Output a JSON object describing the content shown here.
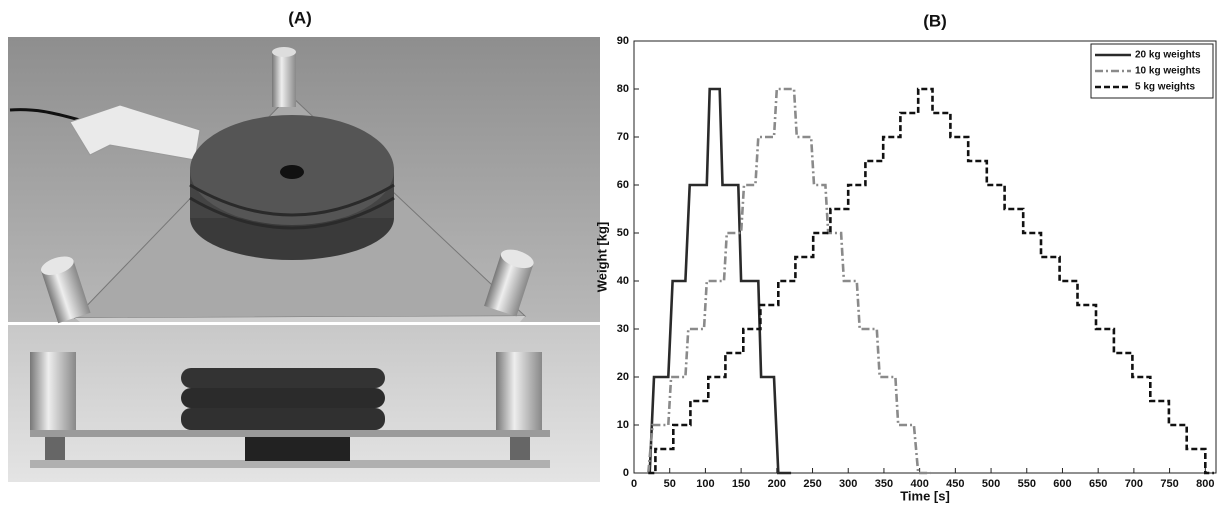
{
  "panel_a": {
    "label": "(A)"
  },
  "chart_data": {
    "type": "line",
    "title": "(B)",
    "x_label": "Time [s]",
    "y_label": "Weight [kg]",
    "xlim": [
      0,
      815
    ],
    "ylim": [
      0,
      90
    ],
    "xticks": [
      0,
      50,
      100,
      150,
      200,
      250,
      300,
      350,
      400,
      450,
      500,
      550,
      600,
      650,
      700,
      750,
      800
    ],
    "yticks": [
      0,
      10,
      20,
      30,
      40,
      50,
      60,
      70,
      80,
      90
    ],
    "legend": "top-right",
    "series": [
      {
        "name": "20 kg weights",
        "color": "#2a2a2a",
        "line_style": "solid",
        "x": [
          22,
          28,
          48,
          54,
          72,
          78,
          102,
          106,
          120,
          124,
          146,
          150,
          174,
          178,
          196,
          202,
          220
        ],
        "values": [
          0,
          20,
          20,
          40,
          40,
          60,
          60,
          80,
          80,
          60,
          60,
          40,
          40,
          20,
          20,
          0,
          0
        ]
      },
      {
        "name": "10 kg weights",
        "color": "#8a8a8a",
        "line_style": "dashdot",
        "x": [
          20,
          26,
          48,
          52,
          72,
          76,
          98,
          102,
          126,
          130,
          150,
          154,
          170,
          174,
          196,
          200,
          224,
          228,
          248,
          252,
          268,
          272,
          290,
          294,
          312,
          316,
          340,
          344,
          366,
          370,
          392,
          398,
          415
        ],
        "values": [
          0,
          10,
          10,
          20,
          20,
          30,
          30,
          40,
          40,
          50,
          50,
          60,
          60,
          70,
          70,
          80,
          80,
          70,
          70,
          60,
          60,
          50,
          50,
          40,
          40,
          30,
          30,
          20,
          20,
          10,
          10,
          0,
          0
        ]
      },
      {
        "name": "5 kg weights",
        "color": "#111111",
        "line_style": "dashed",
        "x": [
          20,
          30,
          30,
          55,
          55,
          79,
          79,
          104,
          104,
          128,
          128,
          153,
          153,
          177,
          177,
          202,
          202,
          226,
          226,
          251,
          251,
          275,
          275,
          300,
          300,
          324,
          324,
          349,
          349,
          373,
          373,
          398,
          398,
          418,
          418,
          443,
          443,
          468,
          468,
          494,
          494,
          519,
          519,
          545,
          545,
          570,
          570,
          596,
          596,
          621,
          621,
          647,
          647,
          672,
          672,
          698,
          698,
          723,
          723,
          749,
          749,
          774,
          774,
          800,
          800,
          812
        ],
        "values": [
          0,
          0,
          5,
          5,
          10,
          10,
          15,
          15,
          20,
          20,
          25,
          25,
          30,
          30,
          35,
          35,
          40,
          40,
          45,
          45,
          50,
          50,
          55,
          55,
          60,
          60,
          65,
          65,
          70,
          70,
          75,
          75,
          80,
          80,
          75,
          75,
          70,
          70,
          65,
          65,
          60,
          60,
          55,
          55,
          50,
          50,
          45,
          45,
          40,
          40,
          35,
          35,
          30,
          30,
          25,
          25,
          20,
          20,
          15,
          15,
          10,
          10,
          5,
          5,
          0,
          0
        ]
      }
    ]
  }
}
